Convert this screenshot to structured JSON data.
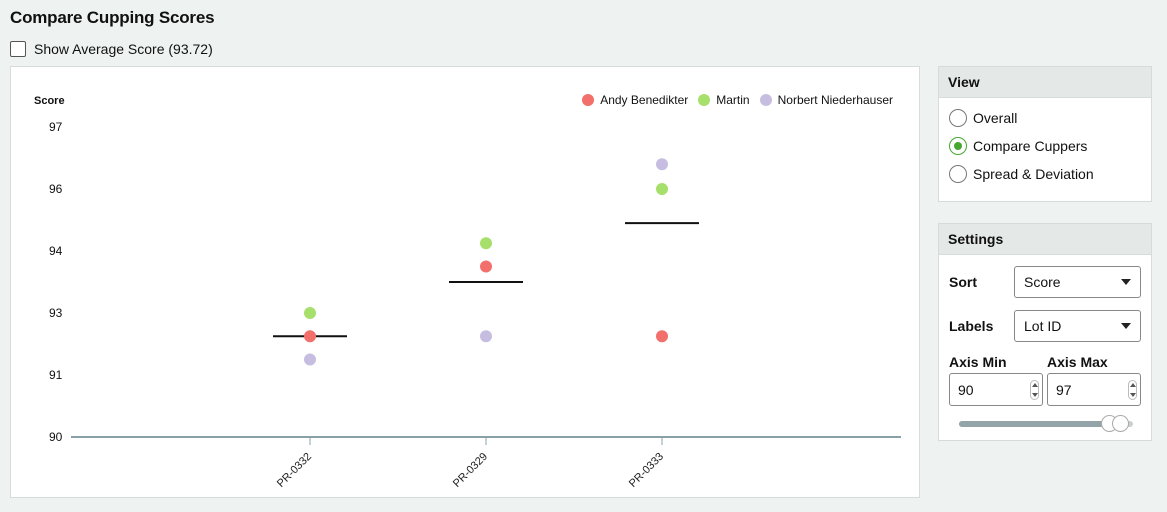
{
  "header": {
    "title": "Compare Cupping Scores"
  },
  "average": {
    "label": "Show Average Score (93.72)",
    "checked": false
  },
  "view": {
    "title": "View",
    "options": [
      {
        "label": "Overall",
        "selected": false
      },
      {
        "label": "Compare Cuppers",
        "selected": true
      },
      {
        "label": "Spread & Deviation",
        "selected": false
      }
    ]
  },
  "settings": {
    "title": "Settings",
    "sort_label": "Sort",
    "sort_value": "Score",
    "labels_label": "Labels",
    "labels_value": "Lot ID",
    "axis_min_label": "Axis Min",
    "axis_min_value": "90",
    "axis_max_label": "Axis Max",
    "axis_max_value": "97",
    "slider": {
      "min": 90,
      "max": 97
    }
  },
  "colors": {
    "accent": "#46a82f",
    "andy": "#f26f6b",
    "martin": "#a6e06a",
    "norbert": "#c6bde0"
  },
  "chart_data": {
    "type": "scatter",
    "ylabel": "Score",
    "yticks": [
      "97",
      "96",
      "94",
      "93",
      "91",
      "90"
    ],
    "categories": [
      "PR-0332",
      "PR-0329",
      "PR-0333"
    ],
    "series": [
      {
        "name": "Andy Benedikter",
        "color": "#f26f6b",
        "values": [
          92.25,
          93.75,
          92.25
        ]
      },
      {
        "name": "Martin",
        "color": "#a6e06a",
        "values": [
          93.0,
          94.25,
          96.0
        ]
      },
      {
        "name": "Norbert Niederhauser",
        "color": "#c6bde0",
        "values": [
          91.5,
          92.25,
          96.4
        ]
      }
    ],
    "means": [
      92.25,
      93.5,
      94.9
    ],
    "legend_position": "top-right",
    "grid": false
  }
}
